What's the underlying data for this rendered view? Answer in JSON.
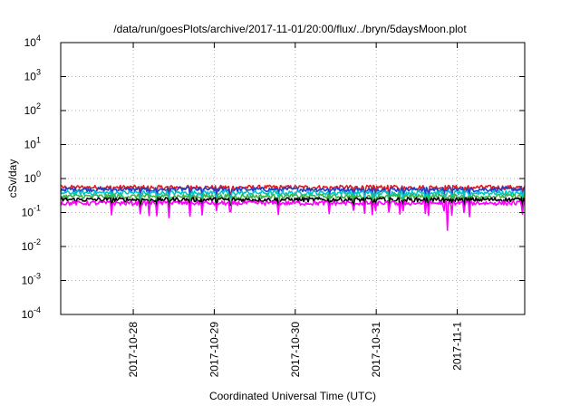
{
  "chart_data": {
    "type": "line",
    "title": "/data/run/goesPlots/archive/2017-11-01/20:00/flux/../bryn/5daysMoon.plot",
    "xlabel": "Coordinated Universal Time (UTC)",
    "ylabel": "cSv/day",
    "yscale": "log",
    "ylim": [
      0.0001,
      10000
    ],
    "xlim": [
      "2017-10-27 02:30",
      "2017-11-01 20:00"
    ],
    "grid": true,
    "y_ticks": [
      {
        "base": "10",
        "exp": "-4",
        "value": 0.0001
      },
      {
        "base": "10",
        "exp": "-3",
        "value": 0.001
      },
      {
        "base": "10",
        "exp": "-2",
        "value": 0.01
      },
      {
        "base": "10",
        "exp": "-1",
        "value": 0.1
      },
      {
        "base": "10",
        "exp": "0",
        "value": 1
      },
      {
        "base": "10",
        "exp": "1",
        "value": 10
      },
      {
        "base": "10",
        "exp": "2",
        "value": 100
      },
      {
        "base": "10",
        "exp": "3",
        "value": 1000
      },
      {
        "base": "10",
        "exp": "4",
        "value": 10000
      }
    ],
    "x_ticks": [
      {
        "label": "2017-10-28",
        "value": "2017-10-28 00:00"
      },
      {
        "label": "2017-10-29",
        "value": "2017-10-29 00:00"
      },
      {
        "label": "2017-10-30",
        "value": "2017-10-30 00:00"
      },
      {
        "label": "2017-10-31",
        "value": "2017-10-31 00:00"
      },
      {
        "label": "2017-11-1",
        "value": "2017-11-01 00:00"
      }
    ],
    "series": [
      {
        "color": "#e41a1c",
        "level": 0.55
      },
      {
        "color": "#1f3fcf",
        "level": 0.48
      },
      {
        "color": "#00c8c8",
        "level": 0.38
      },
      {
        "color": "#3cb44b",
        "level": 0.3
      },
      {
        "color": "#000000",
        "level": 0.24
      },
      {
        "color": "#ff00ff",
        "level": 0.19
      }
    ],
    "dips": [
      {
        "time": "2017-10-31 21:00",
        "value": 0.03
      }
    ]
  }
}
